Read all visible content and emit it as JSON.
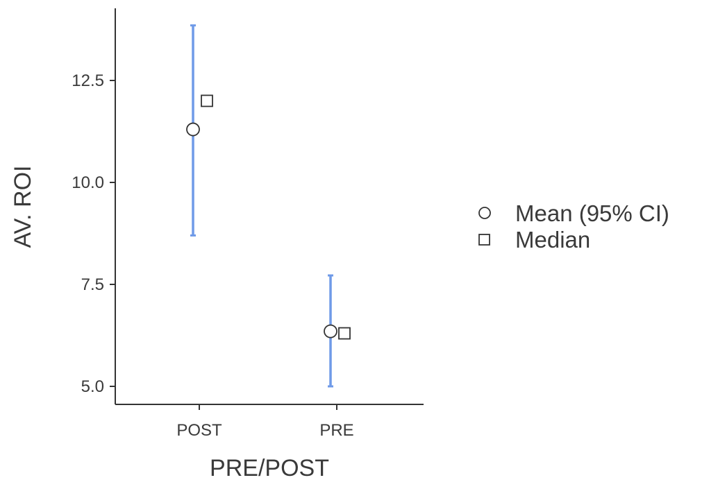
{
  "chart_data": {
    "type": "scatter",
    "xlabel": "PRE/POST",
    "ylabel": "AV. ROI",
    "categories": [
      "POST",
      "PRE"
    ],
    "yticks": [
      5.0,
      7.5,
      10.0,
      12.5
    ],
    "yticks_labels": [
      "5.0",
      "7.5",
      "10.0",
      "12.5"
    ],
    "ylim": [
      4.55,
      13.95
    ],
    "grid": false,
    "legend_position": "right",
    "series": [
      {
        "name": "Mean (95% CI)",
        "marker": "circle",
        "values": [
          11.3,
          6.35
        ],
        "ci_lower": [
          8.7,
          5.0
        ],
        "ci_upper": [
          13.85,
          7.72
        ]
      },
      {
        "name": "Median",
        "marker": "square",
        "values": [
          12.0,
          6.3
        ]
      }
    ],
    "colors": {
      "errorbar": "#6f9ae8",
      "marker_stroke": "#333333",
      "marker_fill": "#ffffff",
      "axis": "#333333"
    }
  }
}
